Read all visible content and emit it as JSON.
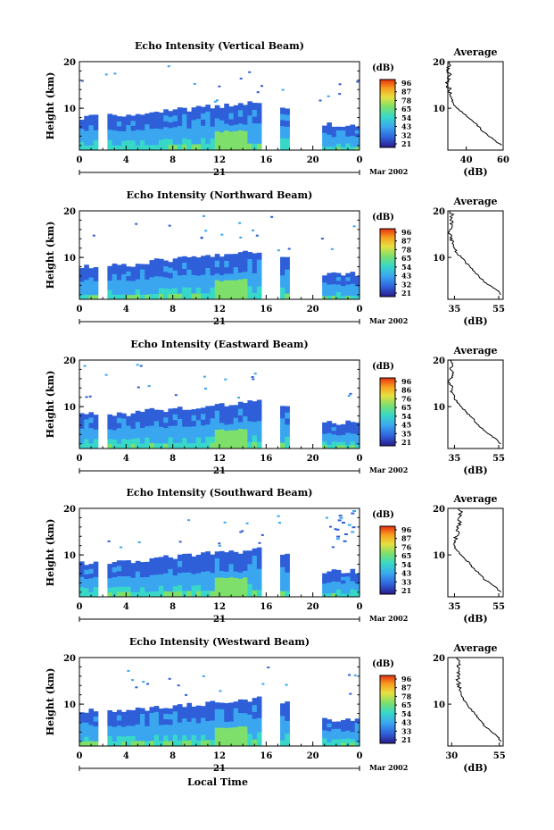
{
  "colorbar": {
    "unit": "(dB)",
    "colors": [
      "#2a1a8a",
      "#2f5fd8",
      "#3aa6f0",
      "#38d8c8",
      "#7ee06a",
      "#e8e040",
      "#f7a020",
      "#e83010"
    ]
  },
  "x_ticks": [
    "0",
    "4",
    "8",
    "12",
    "16",
    "20",
    "0"
  ],
  "date_day": "21",
  "date_month": "Mar 2002",
  "y_label": "Height (km)",
  "y_ticks": [
    "20",
    "10"
  ],
  "x_label": "Local Time",
  "avg_title": "Average",
  "avg_xlabel": "(dB)",
  "chart_data": [
    {
      "type": "heatmap",
      "title": "Echo Intensity (Vertical Beam)",
      "ylabel": "Height (km)",
      "y_range_km": [
        1,
        20
      ],
      "colorbar_ticks": [
        "96",
        "87",
        "78",
        "65",
        "54",
        "43",
        "32",
        "21"
      ],
      "average": {
        "xticks": [
          "40",
          "60"
        ],
        "x_range": [
          30,
          60
        ],
        "heights": [
          2,
          3,
          4,
          5,
          6,
          7,
          8,
          9,
          10,
          11,
          12,
          13,
          14,
          15,
          16,
          17,
          18,
          19,
          20
        ],
        "values": [
          59,
          56,
          52,
          49,
          47,
          44,
          41,
          38,
          35,
          33,
          32,
          31,
          31,
          30,
          30,
          31,
          30,
          31,
          30
        ]
      }
    },
    {
      "type": "heatmap",
      "title": "Echo Intensity (Northward Beam)",
      "ylabel": "Height (km)",
      "y_range_km": [
        1,
        20
      ],
      "colorbar_ticks": [
        "96",
        "87",
        "78",
        "65",
        "54",
        "43",
        "32",
        "21"
      ],
      "average": {
        "xticks": [
          "35",
          "55"
        ],
        "x_range": [
          32,
          57
        ],
        "heights": [
          2,
          3,
          4,
          5,
          6,
          7,
          8,
          9,
          10,
          11,
          12,
          13,
          14,
          15,
          16,
          17,
          18,
          19,
          20
        ],
        "values": [
          56,
          54,
          51,
          48,
          46,
          44,
          42,
          40,
          38,
          36,
          35,
          34,
          34,
          33,
          33,
          34,
          33,
          34,
          33
        ]
      }
    },
    {
      "type": "heatmap",
      "title": "Echo Intensity (Eastward Beam)",
      "ylabel": "Height (km)",
      "y_range_km": [
        1,
        20
      ],
      "colorbar_ticks": [
        "96",
        "86",
        "76",
        "65",
        "54",
        "45",
        "35",
        "21"
      ],
      "average": {
        "xticks": [
          "35",
          "55"
        ],
        "x_range": [
          32,
          57
        ],
        "heights": [
          2,
          3,
          4,
          5,
          6,
          7,
          8,
          9,
          10,
          11,
          12,
          13,
          14,
          15,
          16,
          17,
          18,
          19,
          20
        ],
        "values": [
          56,
          54,
          51,
          48,
          46,
          44,
          42,
          40,
          38,
          36,
          35,
          34,
          34,
          33,
          33,
          34,
          33,
          34,
          33
        ]
      }
    },
    {
      "type": "heatmap",
      "title": "Echo Intensity (Southward Beam)",
      "ylabel": "Height (km)",
      "y_range_km": [
        1,
        20
      ],
      "colorbar_ticks": [
        "96",
        "87",
        "76",
        "65",
        "54",
        "43",
        "33",
        "21"
      ],
      "average": {
        "xticks": [
          "35",
          "55"
        ],
        "x_range": [
          32,
          57
        ],
        "heights": [
          2,
          3,
          4,
          5,
          6,
          7,
          8,
          9,
          10,
          11,
          12,
          13,
          14,
          15,
          16,
          17,
          18,
          19,
          20
        ],
        "values": [
          56,
          54,
          51,
          48,
          46,
          44,
          42,
          40,
          38,
          36,
          35,
          35,
          36,
          37,
          36,
          38,
          37,
          38,
          37
        ]
      }
    },
    {
      "type": "heatmap",
      "title": "Echo Intensity (Westward Beam)",
      "ylabel": "Height (km)",
      "y_range_km": [
        1,
        20
      ],
      "colorbar_ticks": [
        "96",
        "87",
        "78",
        "65",
        "54",
        "43",
        "33",
        "21"
      ],
      "average": {
        "xticks": [
          "30",
          "55"
        ],
        "x_range": [
          28,
          57
        ],
        "heights": [
          2,
          3,
          4,
          5,
          6,
          7,
          8,
          9,
          10,
          11,
          12,
          13,
          14,
          15,
          16,
          17,
          18,
          19,
          20
        ],
        "values": [
          56,
          54,
          51,
          48,
          46,
          44,
          42,
          40,
          38,
          36,
          35,
          34,
          34,
          33,
          33,
          34,
          33,
          34,
          33
        ]
      }
    }
  ]
}
